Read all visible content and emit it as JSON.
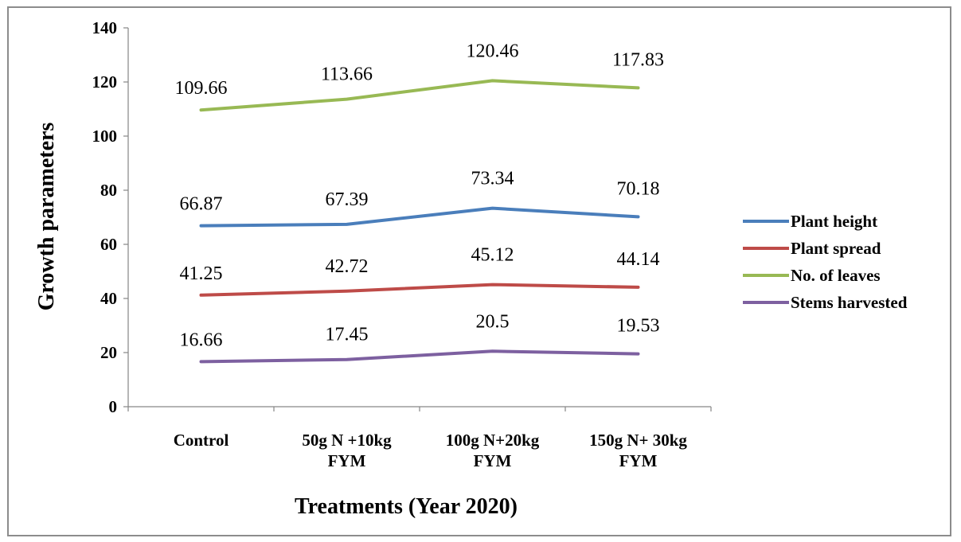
{
  "chart_data": {
    "type": "line",
    "categories": [
      [
        "Control"
      ],
      [
        "50g N +10kg",
        "FYM"
      ],
      [
        "100g N+20kg",
        "FYM"
      ],
      [
        "150g N+ 30kg",
        "FYM"
      ]
    ],
    "series": [
      {
        "name": "Plant height",
        "color": "#4a7ebb",
        "values": [
          66.87,
          67.39,
          73.34,
          70.18
        ]
      },
      {
        "name": "Plant spread",
        "color": "#be4b48",
        "values": [
          41.25,
          42.72,
          45.12,
          44.14
        ]
      },
      {
        "name": "No. of leaves",
        "color": "#98b954",
        "values": [
          109.66,
          113.66,
          120.46,
          117.83
        ]
      },
      {
        "name": "Stems harvested",
        "color": "#7d60a0",
        "values": [
          16.66,
          17.45,
          20.5,
          19.53
        ]
      }
    ],
    "data_labels": [
      [
        "66.87",
        "67.39",
        "73.34",
        "70.18"
      ],
      [
        "41.25",
        "42.72",
        "45.12",
        "44.14"
      ],
      [
        "109.66",
        "113.66",
        "120.46",
        "117.83"
      ],
      [
        "16.66",
        "17.45",
        "20.5",
        "19.53"
      ]
    ],
    "xlabel": "Treatments (Year 2020)",
    "ylabel": "Growth parameters",
    "ylim": [
      0,
      140
    ],
    "yticks": [
      "0",
      "20",
      "40",
      "60",
      "80",
      "100",
      "120",
      "140"
    ],
    "grid": false,
    "legend_position": "right"
  }
}
